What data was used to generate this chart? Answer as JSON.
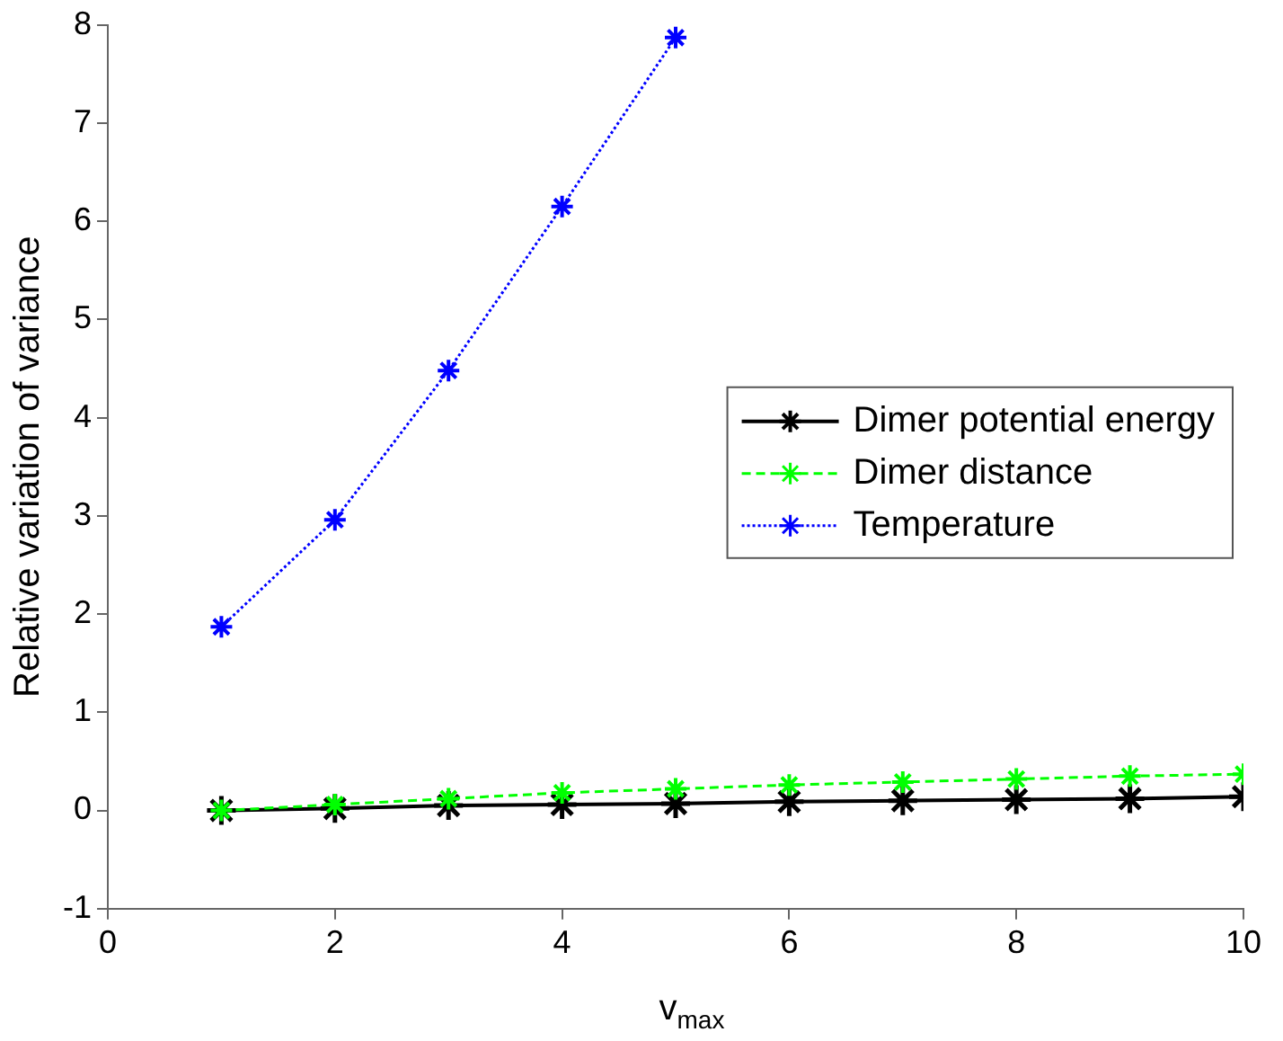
{
  "chart_data": {
    "type": "line",
    "xlabel": "v$_{max}$",
    "ylabel": "Relative variation of variance",
    "x": [
      1,
      2,
      3,
      4,
      5,
      6,
      7,
      8,
      9,
      10
    ],
    "series": [
      {
        "name": "Dimer potential energy",
        "color": "#000000",
        "line_style": "solid",
        "values": [
          0,
          0.02,
          0.05,
          0.06,
          0.07,
          0.09,
          0.1,
          0.11,
          0.12,
          0.14
        ]
      },
      {
        "name": "Dimer distance",
        "color": "#00ff00",
        "line_style": "dashed",
        "values": [
          0,
          0.06,
          0.12,
          0.18,
          0.22,
          0.26,
          0.29,
          0.32,
          0.35,
          0.37
        ]
      },
      {
        "name": "Temperature",
        "color": "#0000ff",
        "line_style": "dotted",
        "values": [
          1.87,
          2.96,
          4.48,
          6.15,
          7.87,
          null,
          null,
          null,
          null,
          null
        ]
      }
    ],
    "xlim": [
      0,
      10
    ],
    "xticks": [
      0,
      2,
      4,
      6,
      8,
      10
    ],
    "ylim": [
      -1,
      8
    ],
    "yticks": [
      -1,
      0,
      1,
      2,
      3,
      4,
      5,
      6,
      7,
      8
    ],
    "grid": false,
    "legend": "right",
    "marker": "cross"
  }
}
